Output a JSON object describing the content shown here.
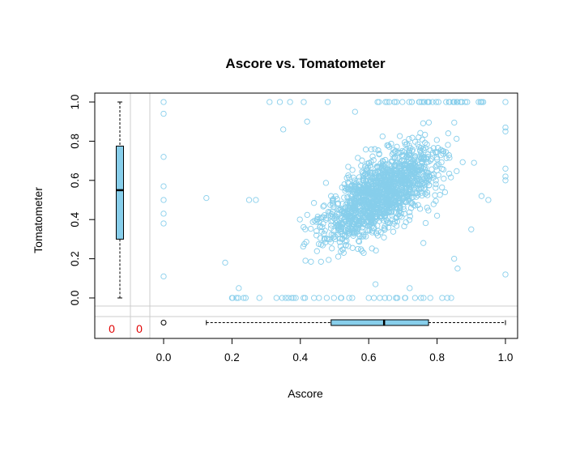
{
  "chart_data": {
    "type": "scatter",
    "title": "Ascore vs. Tomatometer",
    "xlabel": "Ascore",
    "ylabel": "Tomatometer",
    "xlim": [
      -0.2,
      1.04
    ],
    "ylim": [
      -0.2,
      1.04
    ],
    "x_ticks": [
      "0.0",
      "0.2",
      "0.4",
      "0.6",
      "0.8",
      "1.0"
    ],
    "y_ticks": [
      "0.0",
      "0.2",
      "0.4",
      "0.6",
      "0.8",
      "1.0"
    ],
    "missing_counts": {
      "x_missing": "0",
      "y_missing": "0"
    },
    "point_color": "#87ceeb",
    "box_color": "#87ceeb",
    "missing_color": "#e00000",
    "grid": false,
    "x_boxplot": {
      "min": 0.125,
      "q1": 0.49,
      "median": 0.645,
      "q3": 0.775,
      "max": 1.0,
      "outliers": [
        0.0
      ]
    },
    "y_boxplot": {
      "min": 0.0,
      "q1": 0.3,
      "median": 0.55,
      "q3": 0.775,
      "max": 1.0,
      "outliers": []
    },
    "points_note": "Dense positively correlated cloud (~2000 points) with vertical column at x=0 and horizontal rows at y=0 and y=1",
    "points": [
      [
        0.0,
        1.0
      ],
      [
        0.0,
        0.94
      ],
      [
        0.0,
        0.72
      ],
      [
        0.0,
        0.57
      ],
      [
        0.0,
        0.5
      ],
      [
        0.0,
        0.43
      ],
      [
        0.0,
        0.38
      ],
      [
        0.0,
        0.11
      ],
      [
        0.125,
        0.51
      ],
      [
        1.0,
        1.0
      ],
      [
        1.0,
        0.87
      ],
      [
        1.0,
        0.85
      ],
      [
        1.0,
        0.66
      ],
      [
        1.0,
        0.62
      ],
      [
        1.0,
        0.6
      ],
      [
        1.0,
        0.12
      ],
      [
        0.31,
        1.0
      ],
      [
        0.34,
        1.0
      ],
      [
        0.37,
        1.0
      ],
      [
        0.41,
        1.0
      ],
      [
        0.48,
        1.0
      ],
      [
        0.63,
        1.0
      ],
      [
        0.66,
        1.0
      ],
      [
        0.2,
        0.0
      ],
      [
        0.24,
        0.0
      ],
      [
        0.28,
        0.0
      ],
      [
        0.33,
        0.0
      ],
      [
        0.38,
        0.0
      ],
      [
        0.44,
        0.0
      ],
      [
        0.52,
        0.0
      ],
      [
        0.6,
        0.0
      ],
      [
        0.66,
        0.0
      ],
      [
        0.78,
        0.0
      ],
      [
        0.83,
        0.0
      ],
      [
        0.18,
        0.18
      ],
      [
        0.22,
        0.05
      ],
      [
        0.25,
        0.5
      ],
      [
        0.27,
        0.5
      ],
      [
        0.35,
        0.86
      ],
      [
        0.42,
        0.9
      ],
      [
        0.56,
        0.95
      ],
      [
        0.9,
        0.35
      ],
      [
        0.93,
        0.52
      ],
      [
        0.95,
        0.5
      ],
      [
        0.85,
        0.2
      ],
      [
        0.86,
        0.15
      ],
      [
        0.72,
        0.05
      ],
      [
        0.62,
        0.07
      ],
      [
        0.8,
        0.42
      ],
      [
        0.76,
        0.28
      ]
    ]
  }
}
